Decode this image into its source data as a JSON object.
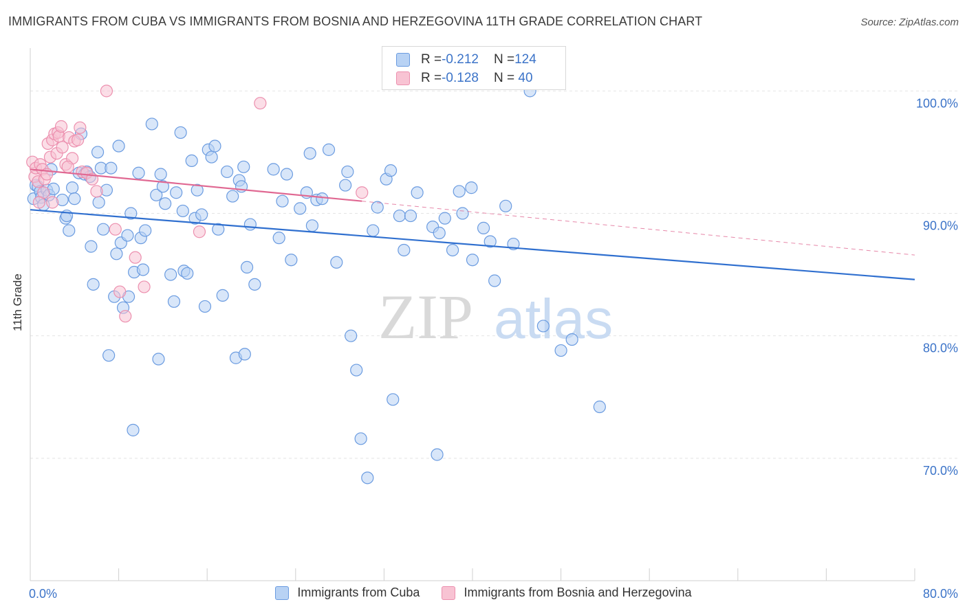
{
  "title": "IMMIGRANTS FROM CUBA VS IMMIGRANTS FROM BOSNIA AND HERZEGOVINA 11TH GRADE CORRELATION CHART",
  "source": "Source: ZipAtlas.com",
  "watermark": {
    "zip": "ZIP",
    "atlas": "atlas"
  },
  "legend": {
    "rows": [
      {
        "r_label": "R = ",
        "r_value": "-0.212",
        "n_label": "N = ",
        "n_value": "124"
      },
      {
        "r_label": "R = ",
        "r_value": "-0.128",
        "n_label": "N = ",
        "n_value": " 40"
      }
    ]
  },
  "colors": {
    "cuba_fill": "#b8d2f4",
    "cuba_stroke": "#6a9be0",
    "cuba_line": "#2f6fcf",
    "bosnia_fill": "#f8c3d3",
    "bosnia_stroke": "#ec8fae",
    "bosnia_line": "#e06892",
    "axis_text": "#3b73c8",
    "grid": "#e4e4e4"
  },
  "chart_data": {
    "type": "scatter",
    "title": "IMMIGRANTS FROM CUBA VS IMMIGRANTS FROM BOSNIA AND HERZEGOVINA 11TH GRADE CORRELATION CHART",
    "xlabel": "",
    "ylabel": "11th Grade",
    "xlim": [
      0,
      80
    ],
    "ylim": [
      60,
      103.5
    ],
    "x_tick_labels": [
      "0.0%",
      "80.0%"
    ],
    "y_ticks": [
      {
        "value": 70,
        "label": "70.0%"
      },
      {
        "value": 80,
        "label": "80.0%"
      },
      {
        "value": 90,
        "label": "90.0%"
      },
      {
        "value": 100,
        "label": "100.0%"
      }
    ],
    "grid": true,
    "legend_position": "top-center",
    "series": [
      {
        "name": "Immigrants from Cuba",
        "r": -0.212,
        "n": 124,
        "trend": {
          "x": [
            0,
            80
          ],
          "y": [
            90.3,
            84.6
          ]
        },
        "points": [
          [
            0.3,
            91.2
          ],
          [
            0.5,
            92.3
          ],
          [
            0.7,
            92.2
          ],
          [
            0.9,
            91.8
          ],
          [
            1.0,
            91.3
          ],
          [
            1.2,
            90.7
          ],
          [
            1.5,
            91.9
          ],
          [
            1.7,
            91.5
          ],
          [
            2.1,
            92.0
          ],
          [
            1.9,
            93.6
          ],
          [
            2.9,
            91.1
          ],
          [
            3.2,
            89.6
          ],
          [
            3.3,
            89.8
          ],
          [
            3.5,
            88.6
          ],
          [
            3.8,
            92.1
          ],
          [
            4.0,
            91.2
          ],
          [
            4.4,
            93.3
          ],
          [
            4.6,
            96.5
          ],
          [
            4.9,
            93.2
          ],
          [
            5.1,
            93.4
          ],
          [
            5.4,
            93.0
          ],
          [
            5.5,
            87.3
          ],
          [
            5.7,
            84.2
          ],
          [
            6.1,
            95.0
          ],
          [
            6.2,
            90.9
          ],
          [
            6.4,
            93.7
          ],
          [
            6.6,
            88.7
          ],
          [
            6.9,
            91.9
          ],
          [
            7.1,
            78.4
          ],
          [
            7.3,
            93.7
          ],
          [
            7.6,
            83.2
          ],
          [
            7.8,
            86.7
          ],
          [
            8.0,
            95.5
          ],
          [
            8.2,
            87.6
          ],
          [
            8.4,
            82.3
          ],
          [
            8.8,
            88.2
          ],
          [
            8.9,
            83.2
          ],
          [
            9.1,
            90.0
          ],
          [
            9.4,
            85.2
          ],
          [
            9.8,
            93.3
          ],
          [
            10.0,
            88.0
          ],
          [
            10.2,
            85.4
          ],
          [
            10.4,
            88.6
          ],
          [
            11.0,
            97.3
          ],
          [
            11.4,
            91.5
          ],
          [
            11.6,
            78.1
          ],
          [
            11.8,
            93.2
          ],
          [
            12.0,
            92.2
          ],
          [
            12.2,
            90.8
          ],
          [
            12.7,
            85.0
          ],
          [
            13.0,
            82.8
          ],
          [
            13.2,
            91.7
          ],
          [
            13.6,
            96.6
          ],
          [
            13.9,
            85.3
          ],
          [
            14.2,
            85.1
          ],
          [
            14.6,
            94.3
          ],
          [
            14.9,
            89.6
          ],
          [
            15.1,
            91.9
          ],
          [
            15.5,
            89.9
          ],
          [
            15.8,
            82.4
          ],
          [
            16.1,
            95.2
          ],
          [
            16.4,
            94.6
          ],
          [
            16.7,
            95.5
          ],
          [
            17.0,
            88.7
          ],
          [
            17.4,
            83.3
          ],
          [
            17.8,
            93.4
          ],
          [
            18.3,
            91.4
          ],
          [
            18.6,
            78.2
          ],
          [
            18.9,
            92.7
          ],
          [
            19.1,
            92.2
          ],
          [
            19.3,
            93.8
          ],
          [
            19.6,
            85.6
          ],
          [
            19.9,
            89.1
          ],
          [
            20.3,
            84.2
          ],
          [
            22.0,
            93.6
          ],
          [
            22.5,
            88.0
          ],
          [
            22.8,
            91.0
          ],
          [
            23.2,
            93.2
          ],
          [
            23.6,
            86.2
          ],
          [
            24.4,
            90.4
          ],
          [
            25.0,
            91.7
          ],
          [
            25.3,
            94.9
          ],
          [
            25.5,
            89.0
          ],
          [
            25.9,
            91.1
          ],
          [
            26.4,
            91.2
          ],
          [
            27.0,
            95.2
          ],
          [
            27.7,
            86.0
          ],
          [
            28.5,
            92.3
          ],
          [
            28.7,
            93.4
          ],
          [
            29.0,
            80.0
          ],
          [
            29.5,
            77.2
          ],
          [
            29.9,
            71.6
          ],
          [
            30.5,
            68.4
          ],
          [
            31.0,
            88.6
          ],
          [
            31.4,
            90.5
          ],
          [
            32.2,
            92.8
          ],
          [
            32.6,
            93.5
          ],
          [
            32.8,
            74.8
          ],
          [
            33.4,
            89.8
          ],
          [
            33.8,
            87.0
          ],
          [
            34.4,
            89.8
          ],
          [
            35.0,
            91.7
          ],
          [
            36.4,
            88.9
          ],
          [
            37.0,
            88.4
          ],
          [
            37.5,
            89.6
          ],
          [
            38.2,
            87.0
          ],
          [
            38.8,
            91.8
          ],
          [
            39.1,
            90.0
          ],
          [
            39.9,
            92.1
          ],
          [
            40.0,
            86.2
          ],
          [
            41.0,
            88.8
          ],
          [
            41.6,
            87.7
          ],
          [
            42.0,
            84.5
          ],
          [
            43.0,
            90.6
          ],
          [
            43.7,
            87.5
          ],
          [
            45.2,
            100.0
          ],
          [
            46.4,
            80.8
          ],
          [
            48.0,
            78.8
          ],
          [
            49.0,
            79.7
          ],
          [
            51.5,
            74.2
          ],
          [
            36.8,
            70.3
          ],
          [
            19.4,
            78.5
          ],
          [
            9.3,
            72.3
          ],
          [
            13.8,
            90.2
          ]
        ]
      },
      {
        "name": "Immigrants from Bosnia and Herzegovina",
        "r": -0.128,
        "n": 40,
        "trend": {
          "x": [
            0,
            30
          ],
          "y": [
            93.6,
            91.0
          ]
        },
        "trend_ext": {
          "x": [
            30,
            80
          ],
          "y": [
            91.0,
            86.6
          ]
        },
        "points": [
          [
            0.2,
            94.2
          ],
          [
            0.4,
            93.0
          ],
          [
            0.5,
            93.7
          ],
          [
            0.7,
            92.6
          ],
          [
            0.9,
            94.0
          ],
          [
            1.1,
            93.6
          ],
          [
            1.3,
            92.8
          ],
          [
            1.5,
            93.2
          ],
          [
            1.6,
            95.7
          ],
          [
            1.8,
            94.6
          ],
          [
            2.0,
            96.0
          ],
          [
            2.2,
            96.5
          ],
          [
            2.4,
            94.9
          ],
          [
            2.5,
            96.6
          ],
          [
            2.6,
            96.3
          ],
          [
            2.8,
            97.1
          ],
          [
            2.9,
            95.4
          ],
          [
            3.2,
            94.0
          ],
          [
            3.5,
            96.2
          ],
          [
            3.8,
            94.5
          ],
          [
            4.0,
            95.9
          ],
          [
            4.3,
            96.0
          ],
          [
            4.5,
            97.0
          ],
          [
            4.7,
            93.4
          ],
          [
            5.1,
            93.3
          ],
          [
            5.6,
            92.8
          ],
          [
            6.0,
            91.8
          ],
          [
            6.9,
            100.0
          ],
          [
            7.7,
            88.7
          ],
          [
            8.1,
            83.6
          ],
          [
            8.6,
            81.6
          ],
          [
            9.5,
            86.4
          ],
          [
            10.3,
            84.0
          ],
          [
            15.3,
            88.5
          ],
          [
            20.8,
            99.0
          ],
          [
            30.0,
            91.7
          ],
          [
            2.0,
            90.9
          ],
          [
            1.2,
            91.7
          ],
          [
            0.8,
            90.9
          ],
          [
            3.4,
            93.8
          ]
        ]
      }
    ]
  }
}
